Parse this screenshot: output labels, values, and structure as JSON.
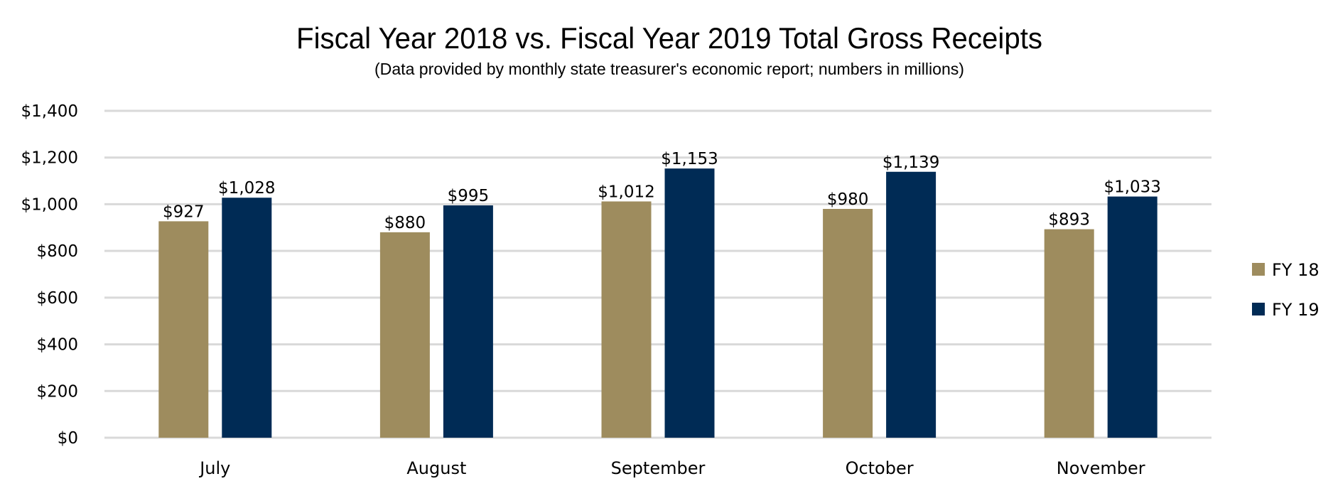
{
  "chart_data": {
    "type": "bar",
    "title": "Fiscal Year 2018 vs. Fiscal Year 2019 Total Gross Receipts",
    "subtitle": "(Data provided by monthly state treasurer's economic report; numbers in millions)",
    "categories": [
      "July",
      "August",
      "September",
      "October",
      "November"
    ],
    "series": [
      {
        "name": "FY 18",
        "color": "#9e8c5e",
        "values": [
          927,
          880,
          1012,
          980,
          893
        ],
        "labels": [
          "$927",
          "$880",
          "$1,012",
          "$980",
          "$893"
        ]
      },
      {
        "name": "FY 19",
        "color": "#002b55",
        "values": [
          1028,
          995,
          1153,
          1139,
          1033
        ],
        "labels": [
          "$1,028",
          "$995",
          "$1,153",
          "$1,139",
          "$1,033"
        ]
      }
    ],
    "ylim": [
      0,
      1400
    ],
    "yticks": [
      0,
      200,
      400,
      600,
      800,
      1000,
      1200,
      1400
    ],
    "ytick_labels": [
      "$0",
      "$200",
      "$400",
      "$600",
      "$800",
      "$1,000",
      "$1,200",
      "$1,400"
    ],
    "grid": true,
    "grid_color": "#d9d9d9",
    "legend_position": "right"
  }
}
